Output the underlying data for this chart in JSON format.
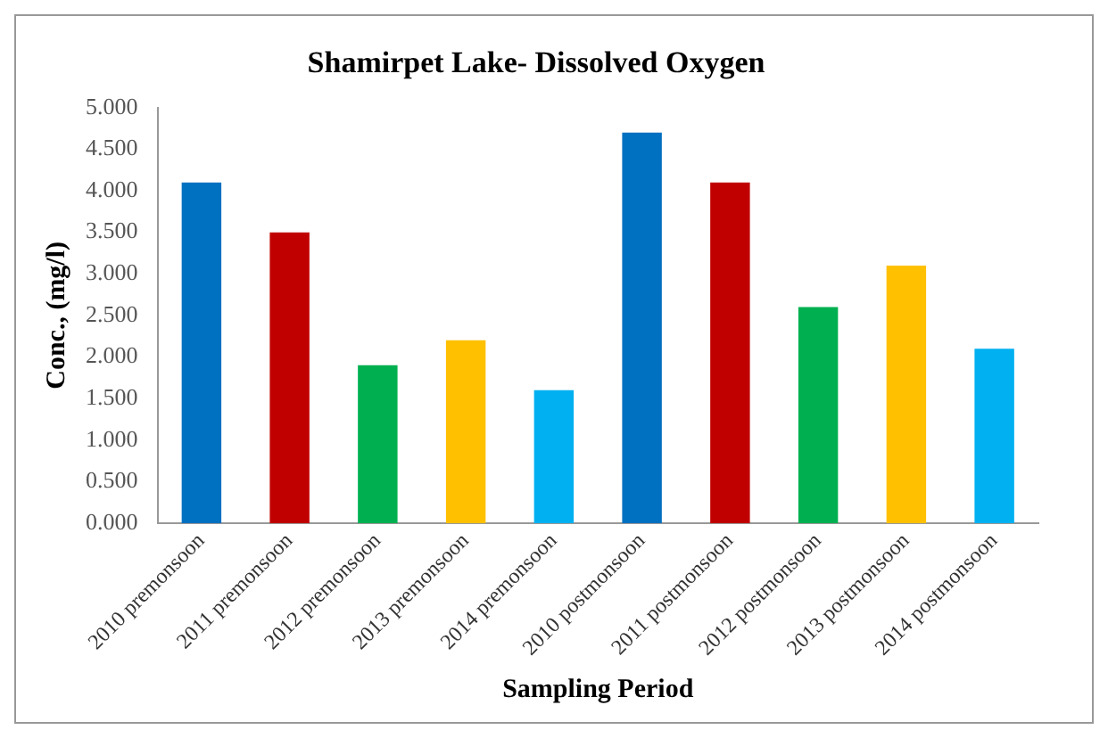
{
  "chart_data": {
    "type": "bar",
    "title": "Shamirpet Lake- Dissolved Oxygen",
    "xlabel": "Sampling Period",
    "ylabel": "Conc., (mg/l)",
    "categories": [
      "2010 premonsoon",
      "2011 premonsoon",
      "2012 premonsoon",
      "2013 premonsoon",
      "2014 premonsoon",
      "2010 postmonsoon",
      "2011 postmonsoon",
      "2012 postmonsoon",
      "2013 postmonsoon",
      "2014 postmonsoon"
    ],
    "values": [
      4.1,
      3.5,
      1.9,
      2.2,
      1.6,
      4.7,
      4.1,
      2.6,
      3.1,
      2.1
    ],
    "colors": [
      "#0070c0",
      "#c00000",
      "#00b050",
      "#ffc000",
      "#00b0f0",
      "#0070c0",
      "#c00000",
      "#00b050",
      "#ffc000",
      "#00b0f0"
    ],
    "ylim": [
      0,
      5
    ],
    "yticks": [
      {
        "value": 0,
        "label": "0.000"
      },
      {
        "value": 0.5,
        "label": "0.500"
      },
      {
        "value": 1,
        "label": "1.000"
      },
      {
        "value": 1.5,
        "label": "1.500"
      },
      {
        "value": 2,
        "label": "2.000"
      },
      {
        "value": 2.5,
        "label": "2.500"
      },
      {
        "value": 3,
        "label": "3.000"
      },
      {
        "value": 3.5,
        "label": "3.500"
      },
      {
        "value": 4,
        "label": "4.000"
      },
      {
        "value": 4.5,
        "label": "4.500"
      },
      {
        "value": 5,
        "label": "5.000"
      }
    ],
    "grid": false,
    "legend": false
  }
}
